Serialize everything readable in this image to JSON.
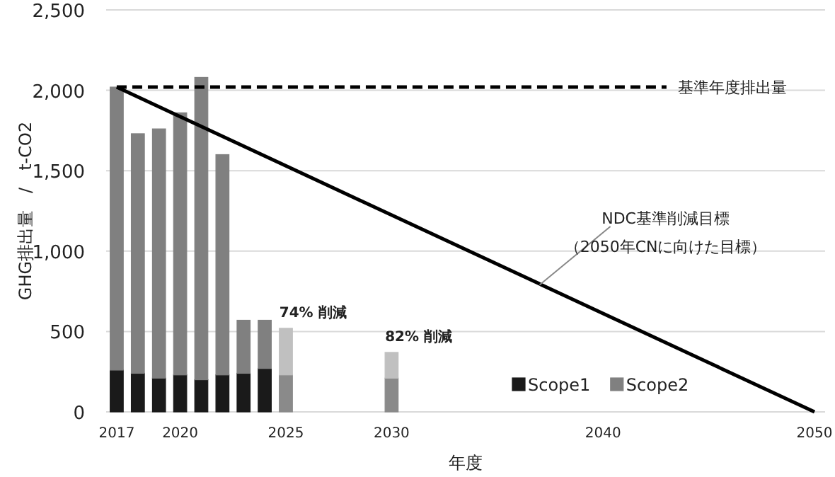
{
  "chart_data": {
    "type": "bar",
    "stacked": true,
    "xlabel": "年度",
    "ylabel": "GHG排出量　/　t-CO2",
    "xlim": [
      2016.5,
      2050.5
    ],
    "xticks": [
      2017,
      2020,
      2025,
      2030,
      2040,
      2050
    ],
    "ylim": [
      0,
      2500
    ],
    "yticks": [
      {
        "value": 0,
        "label": "0"
      },
      {
        "value": 500,
        "label": "500"
      },
      {
        "value": 1000,
        "label": "1,000"
      },
      {
        "value": 1500,
        "label": "1,500"
      },
      {
        "value": 2000,
        "label": "2,000"
      },
      {
        "value": 2500,
        "label": "2,500"
      }
    ],
    "grid": "y",
    "legend": "bottom right",
    "series": [
      {
        "name": "Scope1",
        "color": "#1a1a1a",
        "x": [
          2017,
          2018,
          2019,
          2020,
          2021,
          2022,
          2023,
          2024,
          2025,
          2030
        ],
        "values": [
          260,
          240,
          210,
          230,
          200,
          230,
          240,
          270,
          230,
          210
        ],
        "colors": [
          "#1a1a1a",
          "#1a1a1a",
          "#1a1a1a",
          "#1a1a1a",
          "#1a1a1a",
          "#1a1a1a",
          "#1a1a1a",
          "#1a1a1a",
          "#8a8a8a",
          "#8a8a8a"
        ]
      },
      {
        "name": "Scope2",
        "color": "#808080",
        "x": [
          2017,
          2018,
          2019,
          2020,
          2021,
          2022,
          2023,
          2024,
          2025,
          2030
        ],
        "values": [
          1760,
          1490,
          1550,
          1630,
          1880,
          1370,
          330,
          300,
          290,
          160
        ],
        "colors": [
          "#808080",
          "#808080",
          "#808080",
          "#808080",
          "#808080",
          "#808080",
          "#808080",
          "#808080",
          "#c0c0c0",
          "#c0c0c0"
        ]
      },
      {
        "name": "基準年度排出量",
        "type": "line",
        "color": "#000000",
        "line_style": "dashed",
        "x": [
          2017,
          2043
        ],
        "values": [
          2020,
          2020
        ]
      },
      {
        "type": "line",
        "color": "#000000",
        "line_style": "solid",
        "x": [
          2017,
          2050
        ],
        "values": [
          2020,
          0
        ]
      }
    ],
    "annotations": [
      {
        "text": "74% 削減",
        "x": 2025,
        "y": 520
      },
      {
        "text": "82% 削減",
        "x": 2030,
        "y": 370
      },
      {
        "text": "NDC基準削減目標",
        "x": 2037,
        "y": 790
      },
      "（2050年CNに向けた目標）"
    ]
  }
}
